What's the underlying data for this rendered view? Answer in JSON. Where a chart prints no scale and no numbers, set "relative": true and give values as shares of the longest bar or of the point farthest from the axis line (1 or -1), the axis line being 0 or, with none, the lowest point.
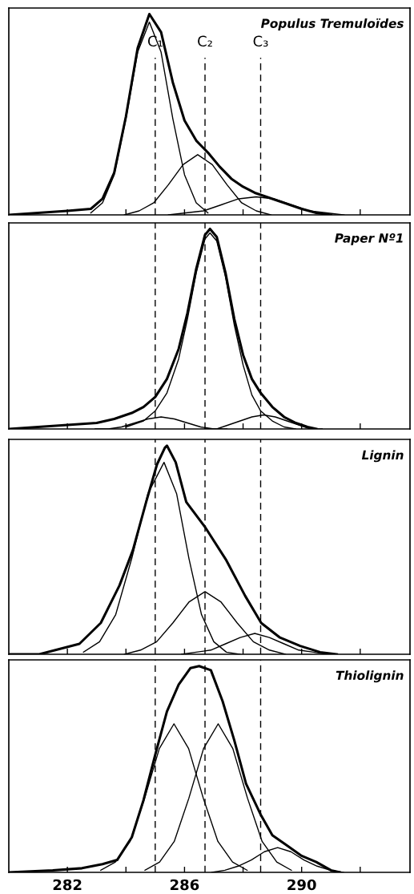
{
  "chart_data": [
    {
      "type": "line",
      "title": "Populus Tremuloïdes",
      "relative": true,
      "xlim": [
        280,
        293.7
      ],
      "tick_labels": false,
      "xticks": [
        {
          "value": 282,
          "label": null
        },
        {
          "value": 284,
          "label": null
        },
        {
          "value": 286,
          "label": null
        },
        {
          "value": 288,
          "label": null
        },
        {
          "value": 290,
          "label": null
        },
        {
          "value": 292,
          "label": null
        }
      ],
      "ref_lines": [
        {
          "axis": "x",
          "value": 285.0,
          "label": "C₁",
          "line_style": "dashed"
        },
        {
          "axis": "x",
          "value": 286.7,
          "label": "C₂",
          "line_style": "dashed"
        },
        {
          "axis": "x",
          "value": 288.6,
          "label": "C₃",
          "line_style": "dashed"
        }
      ],
      "series": [
        {
          "color": "#000000",
          "x": [
            280,
            281,
            282,
            282.8,
            283.2,
            283.6,
            284.0,
            284.4,
            284.8,
            285.2,
            285.6,
            286.0,
            286.4,
            286.8,
            287.2,
            287.6,
            288.0,
            288.4,
            288.8,
            289.2,
            289.6,
            290.0,
            290.5,
            291.0
          ],
          "values": [
            0.0,
            0.01,
            0.02,
            0.03,
            0.08,
            0.21,
            0.49,
            0.83,
            1.0,
            0.91,
            0.66,
            0.47,
            0.37,
            0.31,
            0.24,
            0.18,
            0.14,
            0.11,
            0.09,
            0.07,
            0.05,
            0.03,
            0.01,
            0.0
          ]
        },
        {
          "color": "#000000",
          "x": [
            282.8,
            283.2,
            283.6,
            284.0,
            284.4,
            284.8,
            285.2,
            285.6,
            286.0,
            286.4,
            286.8
          ],
          "values": [
            0.01,
            0.06,
            0.2,
            0.48,
            0.81,
            0.96,
            0.81,
            0.48,
            0.2,
            0.06,
            0.01
          ]
        },
        {
          "color": "#000000",
          "x": [
            283.95,
            284.45,
            284.95,
            285.45,
            285.95,
            286.45,
            286.95,
            287.45,
            287.95,
            288.45,
            288.95
          ],
          "values": [
            0.0,
            0.02,
            0.06,
            0.15,
            0.25,
            0.3,
            0.25,
            0.15,
            0.06,
            0.02,
            0.0
          ]
        },
        {
          "color": "#000000",
          "x": [
            285.45,
            286.05,
            286.65,
            287.25,
            287.85,
            288.45,
            289.05,
            289.65,
            290.25,
            290.85,
            291.45
          ],
          "values": [
            0.0,
            0.01,
            0.02,
            0.05,
            0.08,
            0.09,
            0.08,
            0.05,
            0.02,
            0.01,
            0.0
          ]
        }
      ]
    },
    {
      "type": "line",
      "title": "Paper Nº1",
      "relative": true,
      "xlim": [
        280,
        293.7
      ],
      "tick_labels": false,
      "xticks": [
        {
          "value": 282,
          "label": null
        },
        {
          "value": 284,
          "label": null
        },
        {
          "value": 286,
          "label": null
        },
        {
          "value": 288,
          "label": null
        },
        {
          "value": 290,
          "label": null
        },
        {
          "value": 292,
          "label": null
        }
      ],
      "ref_lines": [
        {
          "axis": "x",
          "value": 285.0,
          "line_style": "dashed"
        },
        {
          "axis": "x",
          "value": 286.7,
          "line_style": "dashed"
        },
        {
          "axis": "x",
          "value": 288.6,
          "line_style": "dashed"
        }
      ],
      "series": [
        {
          "color": "#000000",
          "x": [
            280,
            281,
            282,
            283,
            283.6,
            284.2,
            284.6,
            285.0,
            285.4,
            285.8,
            286.1,
            286.4,
            286.7,
            286.87,
            287.1,
            287.4,
            287.7,
            288.0,
            288.3,
            288.6,
            289.0,
            289.4,
            289.8,
            290.2,
            290.5
          ],
          "values": [
            0.0,
            0.01,
            0.02,
            0.03,
            0.05,
            0.08,
            0.11,
            0.16,
            0.25,
            0.4,
            0.58,
            0.8,
            0.97,
            1.0,
            0.96,
            0.78,
            0.55,
            0.37,
            0.25,
            0.18,
            0.11,
            0.06,
            0.03,
            0.01,
            0.0
          ]
        },
        {
          "color": "#000000",
          "x": [
            284.0,
            284.6,
            285.0,
            285.4,
            285.8,
            286.1,
            286.4,
            286.7,
            286.87,
            287.1,
            287.4,
            287.7,
            288.0,
            288.3,
            288.6,
            289.0,
            289.4,
            289.8
          ],
          "values": [
            0.01,
            0.04,
            0.09,
            0.18,
            0.35,
            0.55,
            0.78,
            0.95,
            0.98,
            0.94,
            0.76,
            0.52,
            0.32,
            0.17,
            0.09,
            0.04,
            0.01,
            0.0
          ]
        },
        {
          "color": "#000000",
          "x": [
            282.95,
            283.4,
            283.85,
            284.3,
            284.75,
            285.2,
            285.65,
            286.1,
            286.55,
            287.0,
            287.45
          ],
          "values": [
            0.0,
            0.0,
            0.01,
            0.03,
            0.05,
            0.06,
            0.05,
            0.03,
            0.01,
            0.0,
            0.0
          ]
        },
        {
          "color": "#000000",
          "x": [
            286.7,
            287.1,
            287.5,
            287.9,
            288.3,
            288.7,
            289.1,
            289.5,
            289.9,
            290.3,
            290.7
          ],
          "values": [
            0.0,
            0.0,
            0.02,
            0.04,
            0.06,
            0.07,
            0.06,
            0.04,
            0.02,
            0.0,
            0.0
          ]
        }
      ]
    },
    {
      "type": "line",
      "title": "Lignin",
      "relative": true,
      "xlim": [
        280,
        293.7
      ],
      "tick_labels": false,
      "xticks": [
        {
          "value": 282,
          "label": null
        },
        {
          "value": 284,
          "label": null
        },
        {
          "value": 286,
          "label": null
        },
        {
          "value": 288,
          "label": null
        },
        {
          "value": 290,
          "label": null
        },
        {
          "value": 292,
          "label": null
        }
      ],
      "ref_lines": [
        {
          "axis": "x",
          "value": 285.0,
          "line_style": "dashed"
        },
        {
          "axis": "x",
          "value": 286.7,
          "line_style": "dashed"
        },
        {
          "axis": "x",
          "value": 288.6,
          "line_style": "dashed"
        }
      ],
      "series": [
        {
          "color": "#000000",
          "x": [
            280,
            281.04,
            282.41,
            283.14,
            283.78,
            284.24,
            284.69,
            285.06,
            285.33,
            285.4,
            285.7,
            286.06,
            286.7,
            287.43,
            288.07,
            288.62,
            289.26,
            289.95,
            290.63,
            291.2
          ],
          "values": [
            0.0,
            0.0,
            0.05,
            0.15,
            0.33,
            0.5,
            0.73,
            0.91,
            0.99,
            1.0,
            0.92,
            0.73,
            0.61,
            0.45,
            0.28,
            0.15,
            0.08,
            0.04,
            0.01,
            0.0
          ]
        },
        {
          "color": "#000000",
          "x": [
            282.55,
            283.1,
            283.65,
            284.2,
            284.75,
            285.3,
            285.73,
            286.15,
            286.58,
            287.0,
            287.43,
            287.9
          ],
          "values": [
            0.01,
            0.06,
            0.19,
            0.46,
            0.77,
            0.92,
            0.77,
            0.46,
            0.19,
            0.06,
            0.01,
            0.0
          ]
        },
        {
          "color": "#000000",
          "x": [
            283.95,
            284.5,
            285.05,
            285.6,
            286.15,
            286.7,
            287.25,
            287.8,
            288.35,
            288.9,
            289.45
          ],
          "values": [
            0.0,
            0.02,
            0.06,
            0.15,
            0.25,
            0.3,
            0.25,
            0.15,
            0.06,
            0.02,
            0.0
          ]
        },
        {
          "color": "#000000",
          "x": [
            285.9,
            286.4,
            286.9,
            287.4,
            287.9,
            288.4,
            288.9,
            289.4,
            289.9,
            290.4,
            290.9
          ],
          "values": [
            0.0,
            0.01,
            0.02,
            0.05,
            0.08,
            0.1,
            0.08,
            0.05,
            0.02,
            0.01,
            0.0
          ]
        }
      ]
    },
    {
      "type": "line",
      "title": "Thiolignin",
      "relative": true,
      "xlim": [
        280,
        293.7
      ],
      "tick_labels": "x",
      "xticks": [
        282,
        {
          "value": 284,
          "label": null
        },
        286,
        {
          "value": 288,
          "label": null
        },
        290,
        {
          "value": 292,
          "label": null
        }
      ],
      "ref_lines": [
        {
          "axis": "x",
          "value": 285.0,
          "line_style": "dashed"
        },
        {
          "axis": "x",
          "value": 286.7,
          "line_style": "dashed"
        },
        {
          "axis": "x",
          "value": 288.6,
          "line_style": "dashed"
        }
      ],
      "series": [
        {
          "color": "#000000",
          "x": [
            280,
            281.5,
            282.5,
            283.2,
            283.7,
            284.2,
            284.6,
            285.0,
            285.4,
            285.8,
            286.2,
            286.5,
            286.9,
            287.3,
            287.7,
            288.1,
            288.6,
            289.0,
            289.5,
            290.0,
            290.5,
            291.0,
            291.3
          ],
          "values": [
            0.0,
            0.01,
            0.02,
            0.04,
            0.06,
            0.17,
            0.35,
            0.57,
            0.78,
            0.91,
            0.99,
            1.0,
            0.98,
            0.83,
            0.64,
            0.43,
            0.28,
            0.18,
            0.13,
            0.08,
            0.05,
            0.01,
            0.0
          ]
        },
        {
          "color": "#000000",
          "x": [
            283.14,
            283.64,
            284.14,
            284.64,
            285.14,
            285.64,
            286.14,
            286.64,
            287.14,
            287.64,
            288.14
          ],
          "values": [
            0.01,
            0.05,
            0.15,
            0.36,
            0.6,
            0.72,
            0.6,
            0.36,
            0.15,
            0.05,
            0.01
          ]
        },
        {
          "color": "#000000",
          "x": [
            284.65,
            285.15,
            285.65,
            286.15,
            286.65,
            287.15,
            287.65,
            288.15,
            288.65,
            289.15,
            289.65
          ],
          "values": [
            0.01,
            0.05,
            0.15,
            0.36,
            0.6,
            0.72,
            0.6,
            0.36,
            0.15,
            0.05,
            0.01
          ]
        },
        {
          "color": "#000000",
          "x": [
            286.93,
            287.38,
            287.83,
            288.28,
            288.73,
            289.18,
            289.63,
            290.08,
            290.53,
            290.98,
            291.43
          ],
          "values": [
            0.0,
            0.01,
            0.03,
            0.06,
            0.1,
            0.12,
            0.1,
            0.06,
            0.03,
            0.01,
            0.0
          ]
        }
      ]
    }
  ]
}
